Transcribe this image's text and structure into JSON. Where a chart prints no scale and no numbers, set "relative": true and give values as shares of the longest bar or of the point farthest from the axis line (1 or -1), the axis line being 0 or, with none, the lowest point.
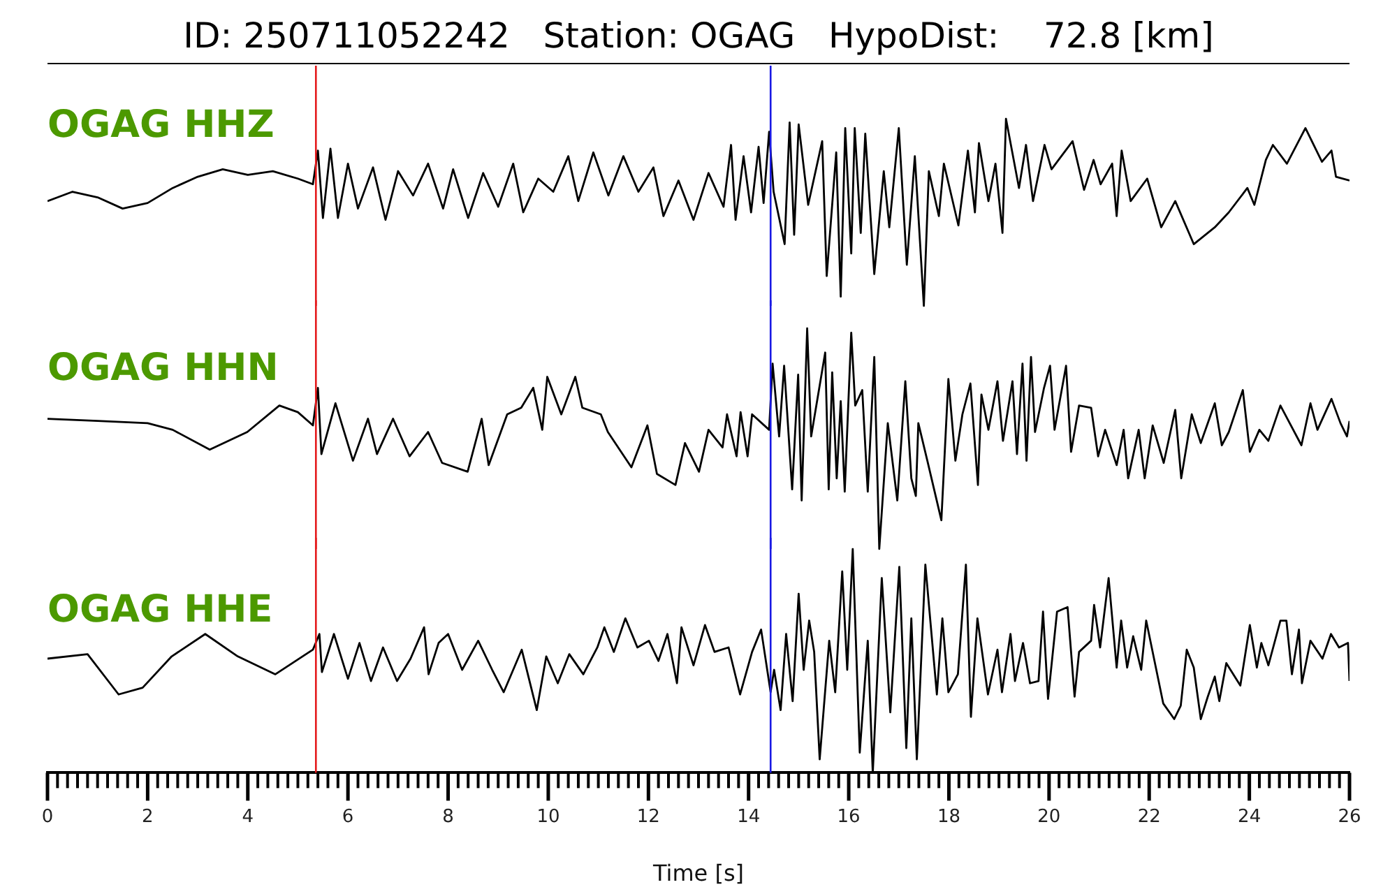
{
  "chart_data": [
    {
      "type": "line",
      "title": "ID: 250711052242   Station: OGAG   HypoDist:    72.8 [km]",
      "relative": true,
      "marker": "none",
      "xlim": [
        0,
        26
      ],
      "tick_labels": false,
      "annotations": [
        "OGAG HHZ"
      ],
      "ref_lines": [
        {
          "axis": "x",
          "value": 5.36,
          "color": "#e41a1c"
        },
        {
          "axis": "x",
          "value": 14.44,
          "color": "#1a1ae4"
        }
      ],
      "series": [
        {
          "color": "#000000",
          "x": [
            0,
            0.5,
            1,
            1.5,
            2,
            2.5,
            3,
            3.5,
            4,
            4.5,
            5,
            5.3,
            5.4,
            5.5,
            5.65,
            5.8,
            6,
            6.2,
            6.5,
            6.75,
            7,
            7.3,
            7.6,
            7.9,
            8.1,
            8.4,
            8.7,
            9,
            9.3,
            9.5,
            9.8,
            10.1,
            10.4,
            10.6,
            10.9,
            11.2,
            11.5,
            11.8,
            12.1,
            12.3,
            12.6,
            12.9,
            13.2,
            13.5,
            13.65,
            13.74,
            13.9,
            14.05,
            14.2,
            14.3,
            14.41,
            14.5,
            14.72,
            14.82,
            14.91,
            15,
            15.19,
            15.47,
            15.56,
            15.75,
            15.84,
            15.93,
            16.05,
            16.12,
            16.24,
            16.33,
            16.51,
            16.7,
            16.81,
            17,
            17.16,
            17.32,
            17.5,
            17.6,
            17.8,
            17.9,
            18.19,
            18.38,
            18.52,
            18.6,
            18.79,
            18.93,
            19.07,
            19.14,
            19.4,
            19.54,
            19.68,
            19.91,
            20.05,
            20.47,
            20.7,
            20.89,
            21.03,
            21.26,
            21.35,
            21.45,
            21.63,
            21.96,
            22.24,
            22.52,
            22.89,
            23.31,
            23.59,
            23.96,
            24.1,
            24.33,
            24.47,
            24.75,
            25.12,
            25.45,
            25.64,
            25.73,
            26
          ],
          "values": [
            0.56,
            0.61,
            0.58,
            0.52,
            0.55,
            0.63,
            0.69,
            0.73,
            0.7,
            0.72,
            0.68,
            0.65,
            0.83,
            0.47,
            0.84,
            0.47,
            0.76,
            0.52,
            0.74,
            0.46,
            0.72,
            0.59,
            0.76,
            0.52,
            0.73,
            0.47,
            0.71,
            0.53,
            0.76,
            0.5,
            0.68,
            0.61,
            0.8,
            0.56,
            0.82,
            0.59,
            0.8,
            0.61,
            0.74,
            0.48,
            0.67,
            0.46,
            0.71,
            0.53,
            0.86,
            0.46,
            0.8,
            0.5,
            0.85,
            0.55,
            0.93,
            0.61,
            0.33,
            0.98,
            0.38,
            0.97,
            0.54,
            0.88,
            0.16,
            0.82,
            0.05,
            0.95,
            0.28,
            0.95,
            0.39,
            0.92,
            0.17,
            0.72,
            0.42,
            0.95,
            0.22,
            0.8,
            0,
            0.72,
            0.48,
            0.76,
            0.43,
            0.83,
            0.5,
            0.87,
            0.56,
            0.76,
            0.39,
            1,
            0.63,
            0.86,
            0.56,
            0.86,
            0.73,
            0.88,
            0.62,
            0.78,
            0.65,
            0.76,
            0.48,
            0.83,
            0.56,
            0.68,
            0.42,
            0.56,
            0.33,
            0.42,
            0.5,
            0.63,
            0.54,
            0.78,
            0.86,
            0.76,
            0.95,
            0.77,
            0.83,
            0.69,
            0.67
          ]
        }
      ]
    },
    {
      "type": "line",
      "relative": true,
      "marker": "none",
      "xlim": [
        0,
        26
      ],
      "tick_labels": false,
      "annotations": [
        "OGAG HHN"
      ],
      "ref_lines": [
        {
          "axis": "x",
          "value": 5.36,
          "color": "#e41a1c"
        },
        {
          "axis": "x",
          "value": 14.44,
          "color": "#1a1ae4"
        }
      ],
      "series": [
        {
          "color": "#000000",
          "x": [
            0,
            1,
            2,
            2.5,
            3.24,
            3.99,
            4.63,
            5,
            5.3,
            5.4,
            5.47,
            5.75,
            6.1,
            6.4,
            6.58,
            6.9,
            7.23,
            7.6,
            7.88,
            8.39,
            8.67,
            8.81,
            9.18,
            9.46,
            9.7,
            9.88,
            9.98,
            10.26,
            10.54,
            10.68,
            11.05,
            11.19,
            11.66,
            11.98,
            12.17,
            12.54,
            12.73,
            13.01,
            13.2,
            13.48,
            13.57,
            13.76,
            13.84,
            13.98,
            14.07,
            14.41,
            14.48,
            14.61,
            14.71,
            14.87,
            14.99,
            15.06,
            15.17,
            15.25,
            15.53,
            15.6,
            15.67,
            15.76,
            15.84,
            15.92,
            16.05,
            16.13,
            16.27,
            16.38,
            16.51,
            16.61,
            16.78,
            16.97,
            17.13,
            17.25,
            17.34,
            17.39,
            17.57,
            17.85,
            17.99,
            18.13,
            18.27,
            18.43,
            18.58,
            18.65,
            18.79,
            18.97,
            19.08,
            19.27,
            19.36,
            19.47,
            19.55,
            19.64,
            19.72,
            19.9,
            20.02,
            20.11,
            20.34,
            20.44,
            20.6,
            20.84,
            20.98,
            21.12,
            21.35,
            21.49,
            21.58,
            21.79,
            21.91,
            22.07,
            22.29,
            22.52,
            22.64,
            22.85,
            23.03,
            23.31,
            23.45,
            23.59,
            23.87,
            24.01,
            24.2,
            24.38,
            24.62,
            24.76,
            25.04,
            25.22,
            25.36,
            25.64,
            25.82,
            25.95,
            26
          ],
          "values": [
            0.59,
            0.58,
            0.57,
            0.54,
            0.45,
            0.53,
            0.65,
            0.62,
            0.56,
            0.73,
            0.43,
            0.66,
            0.4,
            0.59,
            0.43,
            0.59,
            0.42,
            0.53,
            0.39,
            0.35,
            0.59,
            0.38,
            0.61,
            0.64,
            0.73,
            0.54,
            0.78,
            0.61,
            0.78,
            0.64,
            0.61,
            0.53,
            0.37,
            0.56,
            0.34,
            0.29,
            0.48,
            0.35,
            0.54,
            0.46,
            0.61,
            0.42,
            0.62,
            0.42,
            0.61,
            0.54,
            0.84,
            0.51,
            0.83,
            0.27,
            0.79,
            0.22,
            1,
            0.51,
            0.89,
            0.27,
            0.8,
            0.32,
            0.67,
            0.26,
            0.98,
            0.65,
            0.72,
            0.26,
            0.87,
            0,
            0.57,
            0.22,
            0.76,
            0.32,
            0.24,
            0.57,
            0.4,
            0.13,
            0.77,
            0.4,
            0.61,
            0.75,
            0.29,
            0.7,
            0.54,
            0.76,
            0.49,
            0.76,
            0.43,
            0.84,
            0.4,
            0.87,
            0.53,
            0.73,
            0.83,
            0.54,
            0.83,
            0.44,
            0.65,
            0.64,
            0.42,
            0.54,
            0.38,
            0.54,
            0.32,
            0.54,
            0.32,
            0.56,
            0.39,
            0.63,
            0.32,
            0.61,
            0.48,
            0.66,
            0.47,
            0.53,
            0.72,
            0.44,
            0.54,
            0.49,
            0.65,
            0.59,
            0.47,
            0.66,
            0.54,
            0.68,
            0.57,
            0.51,
            0.58
          ]
        }
      ]
    },
    {
      "type": "line",
      "relative": true,
      "marker": "none",
      "xlim": [
        0,
        26
      ],
      "tick_labels": "x",
      "xlabel": "Time [s]",
      "annotations": [
        "OGAG HHE"
      ],
      "xticks": [
        0,
        {
          "value": 0.2,
          "label": null
        },
        {
          "value": 0.4,
          "label": null
        },
        {
          "value": 0.6,
          "label": null
        },
        {
          "value": 0.8,
          "label": null
        },
        {
          "value": 1,
          "label": null
        },
        {
          "value": 1.2,
          "label": null
        },
        {
          "value": 1.4,
          "label": null
        },
        {
          "value": 1.6,
          "label": null
        },
        {
          "value": 1.8,
          "label": null
        },
        2,
        {
          "value": 2.2,
          "label": null
        },
        {
          "value": 2.4,
          "label": null
        },
        {
          "value": 2.6,
          "label": null
        },
        {
          "value": 2.8,
          "label": null
        },
        {
          "value": 3,
          "label": null
        },
        {
          "value": 3.2,
          "label": null
        },
        {
          "value": 3.4,
          "label": null
        },
        {
          "value": 3.6,
          "label": null
        },
        {
          "value": 3.8,
          "label": null
        },
        4,
        {
          "value": 4.2,
          "label": null
        },
        {
          "value": 4.4,
          "label": null
        },
        {
          "value": 4.6,
          "label": null
        },
        {
          "value": 4.8,
          "label": null
        },
        {
          "value": 5,
          "label": null
        },
        {
          "value": 5.2,
          "label": null
        },
        {
          "value": 5.4,
          "label": null
        },
        {
          "value": 5.6,
          "label": null
        },
        {
          "value": 5.8,
          "label": null
        },
        6,
        {
          "value": 6.2,
          "label": null
        },
        {
          "value": 6.4,
          "label": null
        },
        {
          "value": 6.6,
          "label": null
        },
        {
          "value": 6.8,
          "label": null
        },
        {
          "value": 7,
          "label": null
        },
        {
          "value": 7.2,
          "label": null
        },
        {
          "value": 7.4,
          "label": null
        },
        {
          "value": 7.6,
          "label": null
        },
        {
          "value": 7.8,
          "label": null
        },
        8,
        {
          "value": 8.2,
          "label": null
        },
        {
          "value": 8.4,
          "label": null
        },
        {
          "value": 8.6,
          "label": null
        },
        {
          "value": 8.8,
          "label": null
        },
        {
          "value": 9,
          "label": null
        },
        {
          "value": 9.2,
          "label": null
        },
        {
          "value": 9.4,
          "label": null
        },
        {
          "value": 9.6,
          "label": null
        },
        {
          "value": 9.8,
          "label": null
        },
        10,
        {
          "value": 10.2,
          "label": null
        },
        {
          "value": 10.4,
          "label": null
        },
        {
          "value": 10.6,
          "label": null
        },
        {
          "value": 10.8,
          "label": null
        },
        {
          "value": 11,
          "label": null
        },
        {
          "value": 11.2,
          "label": null
        },
        {
          "value": 11.4,
          "label": null
        },
        {
          "value": 11.6,
          "label": null
        },
        {
          "value": 11.8,
          "label": null
        },
        12,
        {
          "value": 12.2,
          "label": null
        },
        {
          "value": 12.4,
          "label": null
        },
        {
          "value": 12.6,
          "label": null
        },
        {
          "value": 12.8,
          "label": null
        },
        {
          "value": 13,
          "label": null
        },
        {
          "value": 13.2,
          "label": null
        },
        {
          "value": 13.4,
          "label": null
        },
        {
          "value": 13.6,
          "label": null
        },
        {
          "value": 13.8,
          "label": null
        },
        14,
        {
          "value": 14.2,
          "label": null
        },
        {
          "value": 14.4,
          "label": null
        },
        {
          "value": 14.6,
          "label": null
        },
        {
          "value": 14.8,
          "label": null
        },
        {
          "value": 15,
          "label": null
        },
        {
          "value": 15.2,
          "label": null
        },
        {
          "value": 15.4,
          "label": null
        },
        {
          "value": 15.6,
          "label": null
        },
        {
          "value": 15.8,
          "label": null
        },
        16,
        {
          "value": 16.2,
          "label": null
        },
        {
          "value": 16.4,
          "label": null
        },
        {
          "value": 16.6,
          "label": null
        },
        {
          "value": 16.8,
          "label": null
        },
        {
          "value": 17,
          "label": null
        },
        {
          "value": 17.2,
          "label": null
        },
        {
          "value": 17.4,
          "label": null
        },
        {
          "value": 17.6,
          "label": null
        },
        {
          "value": 17.8,
          "label": null
        },
        18,
        {
          "value": 18.2,
          "label": null
        },
        {
          "value": 18.4,
          "label": null
        },
        {
          "value": 18.6,
          "label": null
        },
        {
          "value": 18.8,
          "label": null
        },
        {
          "value": 19,
          "label": null
        },
        {
          "value": 19.2,
          "label": null
        },
        {
          "value": 19.4,
          "label": null
        },
        {
          "value": 19.6,
          "label": null
        },
        {
          "value": 19.8,
          "label": null
        },
        20,
        {
          "value": 20.2,
          "label": null
        },
        {
          "value": 20.4,
          "label": null
        },
        {
          "value": 20.6,
          "label": null
        },
        {
          "value": 20.8,
          "label": null
        },
        {
          "value": 21,
          "label": null
        },
        {
          "value": 21.2,
          "label": null
        },
        {
          "value": 21.4,
          "label": null
        },
        {
          "value": 21.6,
          "label": null
        },
        {
          "value": 21.8,
          "label": null
        },
        22,
        {
          "value": 22.2,
          "label": null
        },
        {
          "value": 22.4,
          "label": null
        },
        {
          "value": 22.6,
          "label": null
        },
        {
          "value": 22.8,
          "label": null
        },
        {
          "value": 23,
          "label": null
        },
        {
          "value": 23.2,
          "label": null
        },
        {
          "value": 23.4,
          "label": null
        },
        {
          "value": 23.6,
          "label": null
        },
        {
          "value": 23.8,
          "label": null
        },
        24,
        {
          "value": 24.2,
          "label": null
        },
        {
          "value": 24.4,
          "label": null
        },
        {
          "value": 24.6,
          "label": null
        },
        {
          "value": 24.8,
          "label": null
        },
        {
          "value": 25,
          "label": null
        },
        {
          "value": 25.2,
          "label": null
        },
        {
          "value": 25.4,
          "label": null
        },
        {
          "value": 25.6,
          "label": null
        },
        {
          "value": 25.8,
          "label": null
        },
        26
      ],
      "ref_lines": [
        {
          "axis": "x",
          "value": 5.36,
          "color": "#e41a1c"
        },
        {
          "axis": "x",
          "value": 14.44,
          "color": "#1a1ae4"
        }
      ],
      "series": [
        {
          "color": "#000000",
          "x": [
            0,
            0.8,
            1.42,
            1.9,
            2.48,
            3.15,
            3.8,
            4.55,
            5.3,
            5.43,
            5.48,
            5.72,
            6,
            6.23,
            6.46,
            6.7,
            6.98,
            7.25,
            7.52,
            7.61,
            7.81,
            8,
            8.28,
            8.6,
            8.88,
            9.11,
            9.47,
            9.77,
            9.96,
            10.19,
            10.42,
            10.7,
            10.98,
            11.12,
            11.31,
            11.54,
            11.78,
            12.01,
            12.2,
            12.38,
            12.57,
            12.66,
            12.9,
            13.13,
            13.32,
            13.6,
            13.83,
            14.07,
            14.25,
            14.44,
            14.51,
            14.64,
            14.75,
            14.88,
            15,
            15.1,
            15.21,
            15.31,
            15.42,
            15.61,
            15.73,
            15.87,
            15.97,
            16.08,
            16.22,
            16.38,
            16.48,
            16.66,
            16.83,
            17.01,
            17.15,
            17.25,
            17.36,
            17.53,
            17.76,
            17.87,
            17.99,
            18.18,
            18.34,
            18.44,
            18.57,
            18.78,
            18.97,
            19.06,
            19.23,
            19.32,
            19.48,
            19.62,
            19.79,
            19.88,
            19.98,
            20.16,
            20.37,
            20.51,
            20.6,
            20.84,
            20.9,
            21.02,
            21.19,
            21.35,
            21.44,
            21.56,
            21.68,
            21.84,
            21.94,
            22.28,
            22.5,
            22.63,
            22.75,
            22.89,
            23.03,
            23.17,
            23.31,
            23.4,
            23.54,
            23.82,
            24.01,
            24.15,
            24.24,
            24.38,
            24.62,
            24.74,
            24.85,
            24.99,
            25.05,
            25.22,
            25.46,
            25.63,
            25.79,
            25.97,
            26
          ],
          "values": [
            0.51,
            0.53,
            0.35,
            0.38,
            0.52,
            0.62,
            0.52,
            0.44,
            0.55,
            0.62,
            0.45,
            0.62,
            0.42,
            0.58,
            0.41,
            0.56,
            0.41,
            0.51,
            0.65,
            0.44,
            0.58,
            0.62,
            0.46,
            0.59,
            0.46,
            0.36,
            0.55,
            0.28,
            0.52,
            0.4,
            0.53,
            0.44,
            0.56,
            0.65,
            0.54,
            0.69,
            0.56,
            0.59,
            0.5,
            0.62,
            0.4,
            0.65,
            0.48,
            0.66,
            0.54,
            0.56,
            0.35,
            0.54,
            0.64,
            0.36,
            0.46,
            0.28,
            0.62,
            0.32,
            0.8,
            0.46,
            0.68,
            0.54,
            0.06,
            0.59,
            0.36,
            0.9,
            0.46,
            1,
            0.09,
            0.59,
            0,
            0.87,
            0.27,
            0.92,
            0.11,
            0.69,
            0.06,
            0.93,
            0.35,
            0.69,
            0.36,
            0.44,
            0.93,
            0.25,
            0.69,
            0.35,
            0.55,
            0.36,
            0.62,
            0.41,
            0.58,
            0.4,
            0.41,
            0.72,
            0.33,
            0.72,
            0.74,
            0.34,
            0.54,
            0.59,
            0.75,
            0.56,
            0.87,
            0.47,
            0.68,
            0.47,
            0.61,
            0.46,
            0.68,
            0.31,
            0.24,
            0.3,
            0.55,
            0.47,
            0.24,
            0.34,
            0.43,
            0.32,
            0.49,
            0.39,
            0.66,
            0.47,
            0.58,
            0.48,
            0.68,
            0.68,
            0.44,
            0.64,
            0.4,
            0.59,
            0.51,
            0.62,
            0.56,
            0.58,
            0.41
          ]
        }
      ]
    }
  ]
}
